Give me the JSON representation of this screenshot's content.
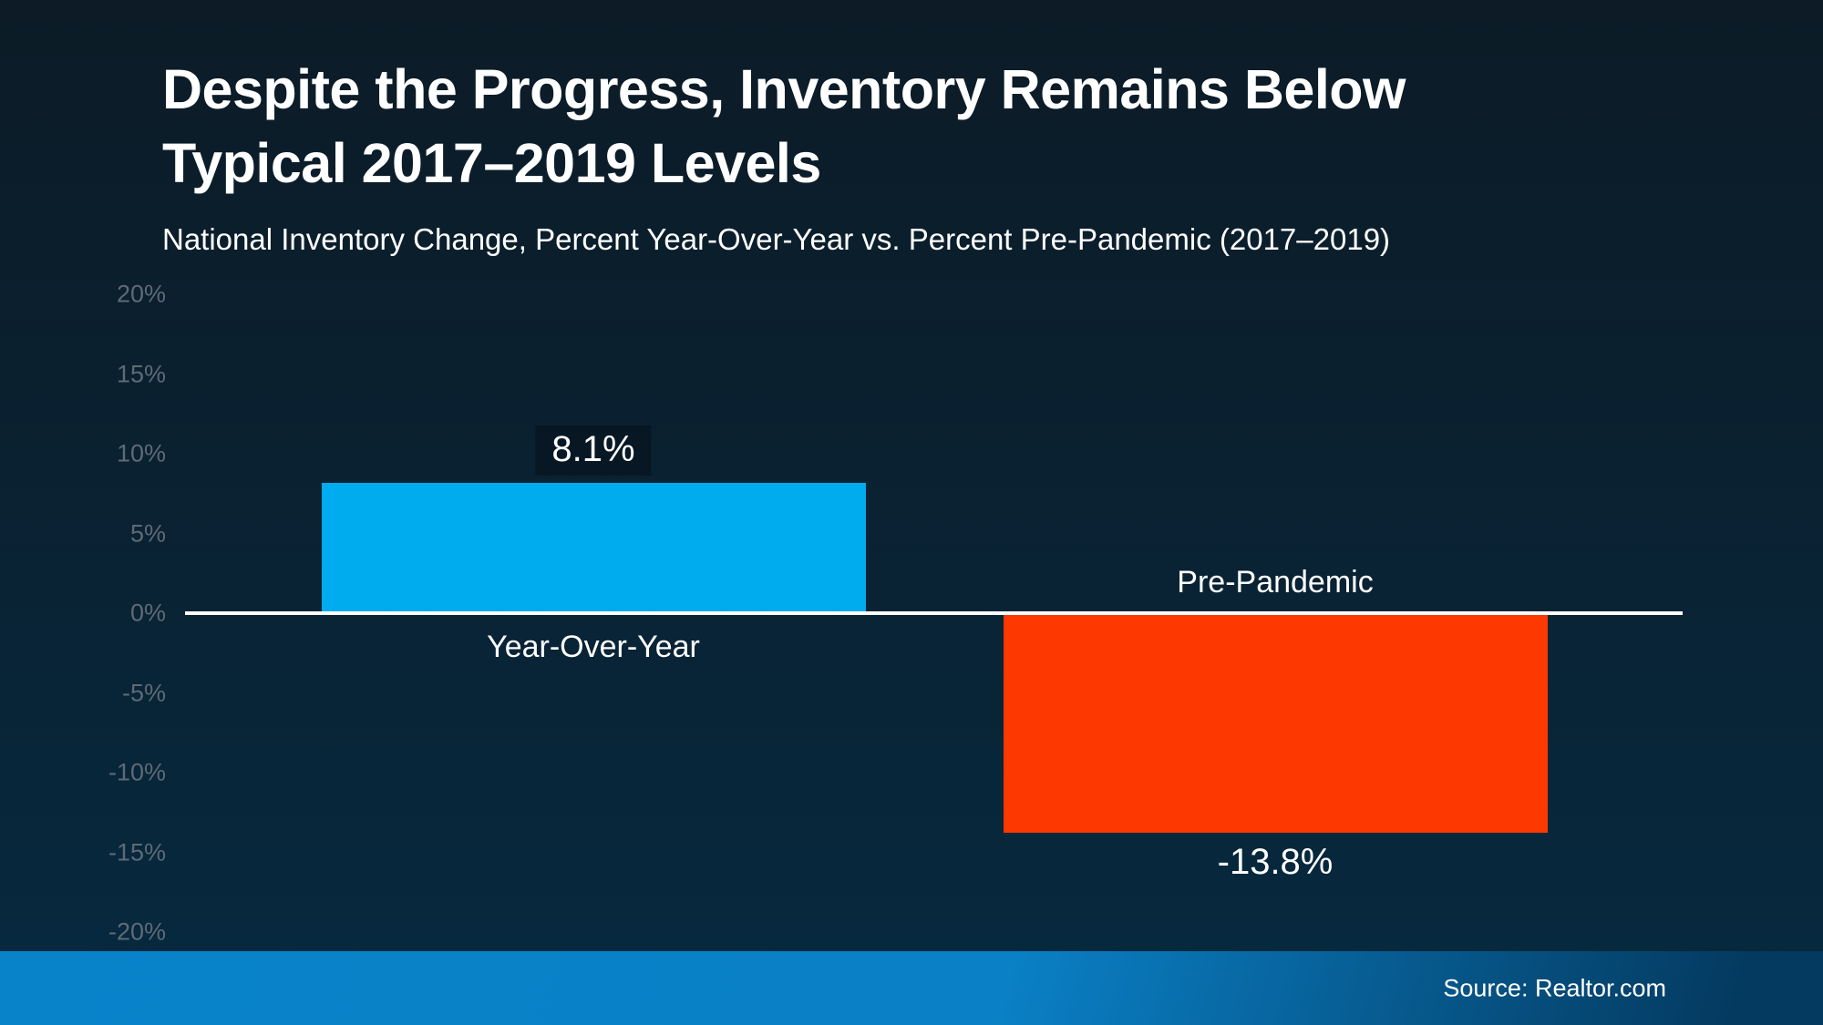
{
  "header": {
    "title_lines": [
      "Despite the Progress, Inventory Remains Below",
      "Typical 2017–2019 Levels"
    ],
    "subtitle": "National Inventory Change, Percent Year-Over-Year vs. Percent Pre-Pandemic (2017–2019)"
  },
  "chart_data": {
    "type": "bar",
    "title": "Despite the Progress, Inventory Remains Below Typical 2017–2019 Levels",
    "subtitle": "National Inventory Change, Percent Year-Over-Year vs. Percent Pre-Pandemic (2017–2019)",
    "categories": [
      "Year-Over-Year",
      "Pre-Pandemic"
    ],
    "values": [
      8.1,
      -13.8
    ],
    "value_labels": [
      "8.1%",
      "-13.8%"
    ],
    "bar_colors": [
      "#00abee",
      "#fd3800"
    ],
    "xlabel": "",
    "ylabel": "",
    "ylim": [
      -20,
      20
    ],
    "ytick_step": 5,
    "yticks": [
      "20%",
      "15%",
      "10%",
      "5%",
      "0%",
      "-5%",
      "-10%",
      "-15%",
      "-20%"
    ],
    "baseline": 0,
    "grid": false,
    "legend": "none"
  },
  "footer": {
    "source": "Source: Realtor.com"
  },
  "colors": {
    "background_top": "#0c1b26",
    "background_bottom": "#062a40",
    "bar_positive": "#00abee",
    "bar_negative": "#fd3800",
    "axis_line": "#ffffff",
    "tick_label": "#5e6a75",
    "title_text": "#ffffff",
    "footer_left": "#0883ca",
    "footer_right": "#043a60",
    "source_text": "#ffffff"
  }
}
